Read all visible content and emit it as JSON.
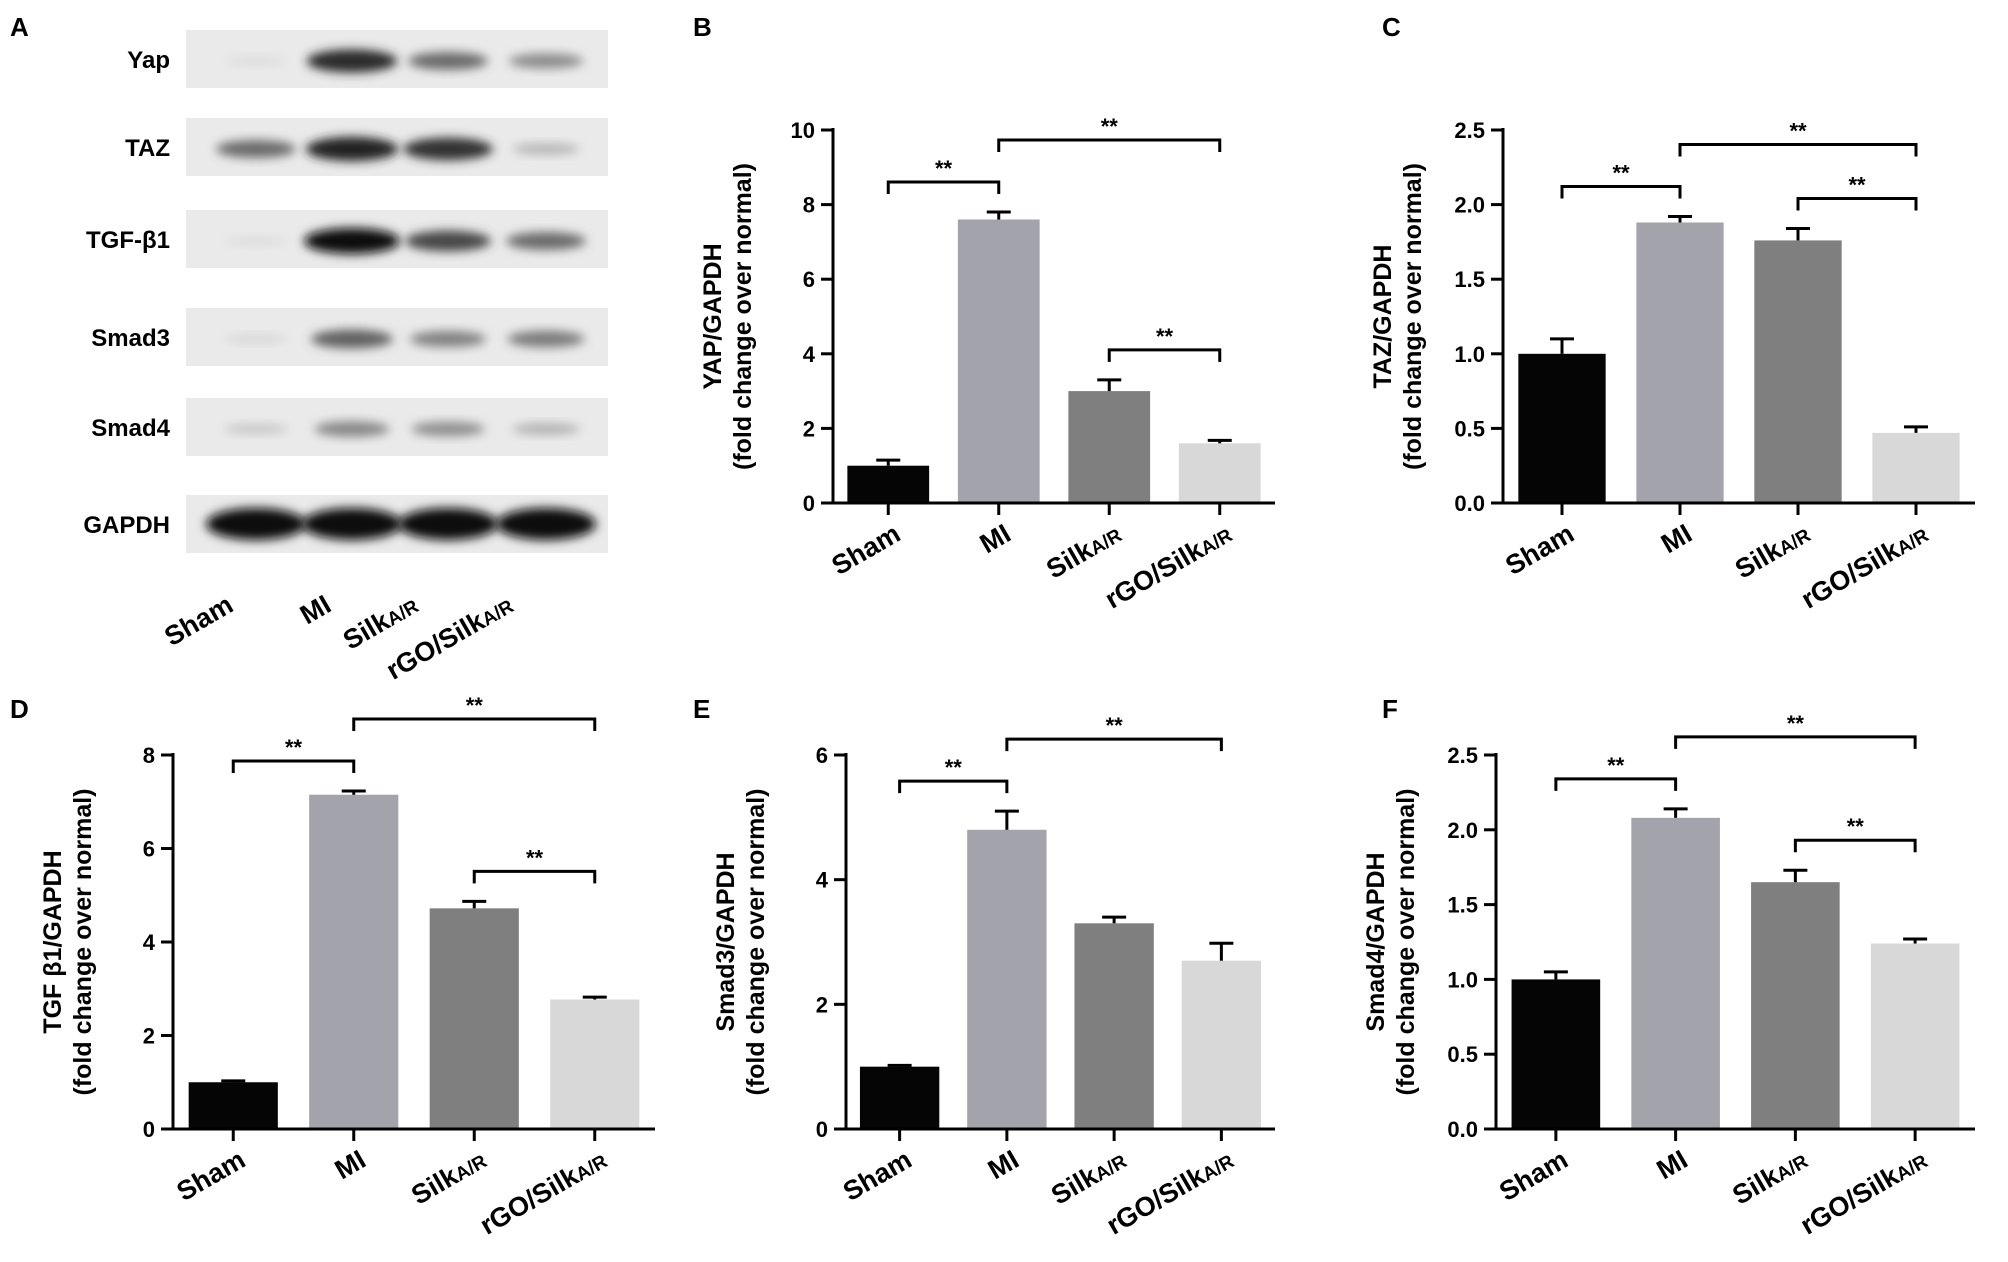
{
  "colors": {
    "Sham": "#050505",
    "MI": "#a3a3ab",
    "SilkAR": "#7f7f7f",
    "rGOSilkAR": "#d8d8d8",
    "axis": "#000000"
  },
  "categories": [
    {
      "main": "Sham",
      "sub": ""
    },
    {
      "main": "MI",
      "sub": ""
    },
    {
      "main": "Silk",
      "sub": "A/R"
    },
    {
      "main": "rGO/Silk",
      "sub": "A/R"
    }
  ],
  "panel_A": {
    "letter": "A",
    "bands": [
      "Yap",
      "TAZ",
      "TGF-β1",
      "Smad3",
      "Smad4",
      "GAPDH"
    ],
    "intensity": [
      [
        0.03,
        0.85,
        0.55,
        0.4
      ],
      [
        0.55,
        0.9,
        0.82,
        0.2
      ],
      [
        0.03,
        1.0,
        0.72,
        0.55
      ],
      [
        0.05,
        0.6,
        0.45,
        0.48
      ],
      [
        0.12,
        0.42,
        0.38,
        0.22
      ],
      [
        1.0,
        1.0,
        1.0,
        1.0
      ]
    ]
  },
  "chart_data": [
    {
      "panel": "B",
      "type": "bar",
      "ylabel_line1": "YAP/GAPDH",
      "ylabel_line2": "(fold change over normal)",
      "categories": [
        "Sham",
        "MI",
        "SilkA/R",
        "rGO/SilkA/R"
      ],
      "values": [
        1.0,
        7.6,
        3.0,
        1.6
      ],
      "errors": [
        0.15,
        0.2,
        0.3,
        0.08
      ],
      "ylim": [
        0,
        10
      ],
      "yticks": [
        0,
        2,
        4,
        6,
        8,
        10
      ],
      "yticklabels": [
        "0",
        "2",
        "4",
        "6",
        "8",
        "10"
      ],
      "significance": [
        {
          "from": 0,
          "to": 1,
          "label": "**"
        },
        {
          "from": 1,
          "to": 3,
          "label": "**"
        },
        {
          "from": 2,
          "to": 3,
          "label": "**"
        }
      ]
    },
    {
      "panel": "C",
      "type": "bar",
      "ylabel_line1": "TAZ/GAPDH",
      "ylabel_line2": "(fold change over normal)",
      "categories": [
        "Sham",
        "MI",
        "SilkA/R",
        "rGO/SilkA/R"
      ],
      "values": [
        1.0,
        1.88,
        1.76,
        0.47
      ],
      "errors": [
        0.1,
        0.04,
        0.08,
        0.04
      ],
      "ylim": [
        0,
        2.5
      ],
      "yticks": [
        0,
        0.5,
        1.0,
        1.5,
        2.0,
        2.5
      ],
      "yticklabels": [
        "0.0",
        "0.5",
        "1.0",
        "1.5",
        "2.0",
        "2.5"
      ],
      "significance": [
        {
          "from": 0,
          "to": 1,
          "label": "**"
        },
        {
          "from": 1,
          "to": 3,
          "label": "**"
        },
        {
          "from": 2,
          "to": 3,
          "label": "**"
        }
      ]
    },
    {
      "panel": "D",
      "type": "bar",
      "ylabel_line1": "TGF β1/GAPDH",
      "ylabel_line2": "(fold change over normal)",
      "categories": [
        "Sham",
        "MI",
        "SilkA/R",
        "rGO/SilkA/R"
      ],
      "values": [
        1.0,
        7.15,
        4.72,
        2.77
      ],
      "errors": [
        0.03,
        0.08,
        0.15,
        0.05
      ],
      "ylim": [
        0,
        8
      ],
      "yticks": [
        0,
        2,
        4,
        6,
        8
      ],
      "yticklabels": [
        "0",
        "2",
        "4",
        "6",
        "8"
      ],
      "significance": [
        {
          "from": 0,
          "to": 1,
          "label": "**"
        },
        {
          "from": 1,
          "to": 3,
          "label": "**"
        },
        {
          "from": 2,
          "to": 3,
          "label": "**"
        }
      ]
    },
    {
      "panel": "E",
      "type": "bar",
      "ylabel_line1": "Smad3/GAPDH",
      "ylabel_line2": "(fold change over normal)",
      "categories": [
        "Sham",
        "MI",
        "SilkA/R",
        "rGO/SilkA/R"
      ],
      "values": [
        1.0,
        4.8,
        3.3,
        2.7
      ],
      "errors": [
        0.02,
        0.3,
        0.1,
        0.28
      ],
      "ylim": [
        0,
        6
      ],
      "yticks": [
        0,
        2,
        4,
        6
      ],
      "yticklabels": [
        "0",
        "2",
        "4",
        "6"
      ],
      "significance": [
        {
          "from": 0,
          "to": 1,
          "label": "**"
        },
        {
          "from": 1,
          "to": 3,
          "label": "**"
        }
      ]
    },
    {
      "panel": "F",
      "type": "bar",
      "ylabel_line1": "Smad4/GAPDH",
      "ylabel_line2": "(fold change over normal)",
      "categories": [
        "Sham",
        "MI",
        "SilkA/R",
        "rGO/SilkA/R"
      ],
      "values": [
        1.0,
        2.08,
        1.65,
        1.24
      ],
      "errors": [
        0.05,
        0.06,
        0.08,
        0.03
      ],
      "ylim": [
        0,
        2.5
      ],
      "yticks": [
        0,
        0.5,
        1.0,
        1.5,
        2.0,
        2.5
      ],
      "yticklabels": [
        "0.0",
        "0.5",
        "1.0",
        "1.5",
        "2.0",
        "2.5"
      ],
      "significance": [
        {
          "from": 0,
          "to": 1,
          "label": "**"
        },
        {
          "from": 1,
          "to": 3,
          "label": "**"
        },
        {
          "from": 2,
          "to": 3,
          "label": "**"
        }
      ]
    }
  ]
}
